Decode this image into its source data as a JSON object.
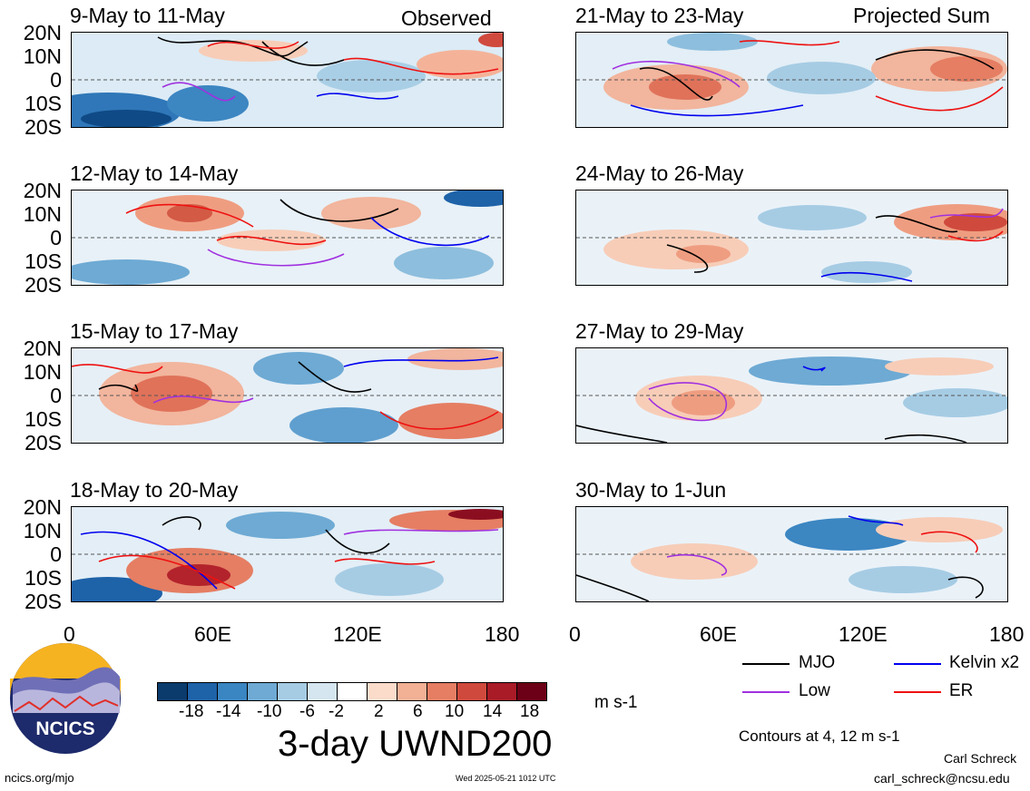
{
  "panels": {
    "left": [
      {
        "title": "9-May to 11-May",
        "tag": "Observed"
      },
      {
        "title": "12-May to 14-May",
        "tag": ""
      },
      {
        "title": "15-May to 17-May",
        "tag": ""
      },
      {
        "title": "18-May to 20-May",
        "tag": ""
      }
    ],
    "right": [
      {
        "title": "21-May to 23-May",
        "tag": "Projected Sum"
      },
      {
        "title": "24-May to 26-May",
        "tag": ""
      },
      {
        "title": "27-May to 29-May",
        "tag": ""
      },
      {
        "title": "30-May to 1-Jun",
        "tag": ""
      }
    ]
  },
  "axes": {
    "lat_labels": [
      "20N",
      "10N",
      "0",
      "10S",
      "20S"
    ],
    "lon_labels": [
      "0",
      "60E",
      "120E",
      "180"
    ],
    "lat_range": [
      -20,
      20
    ],
    "lon_range": [
      0,
      180
    ]
  },
  "colorbar": {
    "ticks": [
      "-18",
      "-14",
      "-10",
      "-6",
      "-2",
      "2",
      "6",
      "10",
      "14",
      "18"
    ],
    "units": "m s-1",
    "colors": [
      "#0b3b6d",
      "#1e62a8",
      "#3a86c2",
      "#6eaad4",
      "#a6cce4",
      "#d5e6f1",
      "#ffffff",
      "#fbdccb",
      "#f2b095",
      "#e57e63",
      "#cf4a3d",
      "#a81b27",
      "#6c0016"
    ]
  },
  "title": "3-day UWND200",
  "legend": [
    {
      "label": "MJO",
      "color": "#000000"
    },
    {
      "label": "Kelvin x2",
      "color": "#0000ee"
    },
    {
      "label": "Low",
      "color": "#a030e0"
    },
    {
      "label": "ER",
      "color": "#ee1111"
    }
  ],
  "contours_note": "Contours at 4, 12 m s-1",
  "logo_text": "NCICS",
  "footer": {
    "left": "ncics.org/mjo",
    "center": "Wed 2025-05-21 1012 UTC",
    "author": "Carl Schreck",
    "email": "carl_schreck@ncsu.edu"
  }
}
